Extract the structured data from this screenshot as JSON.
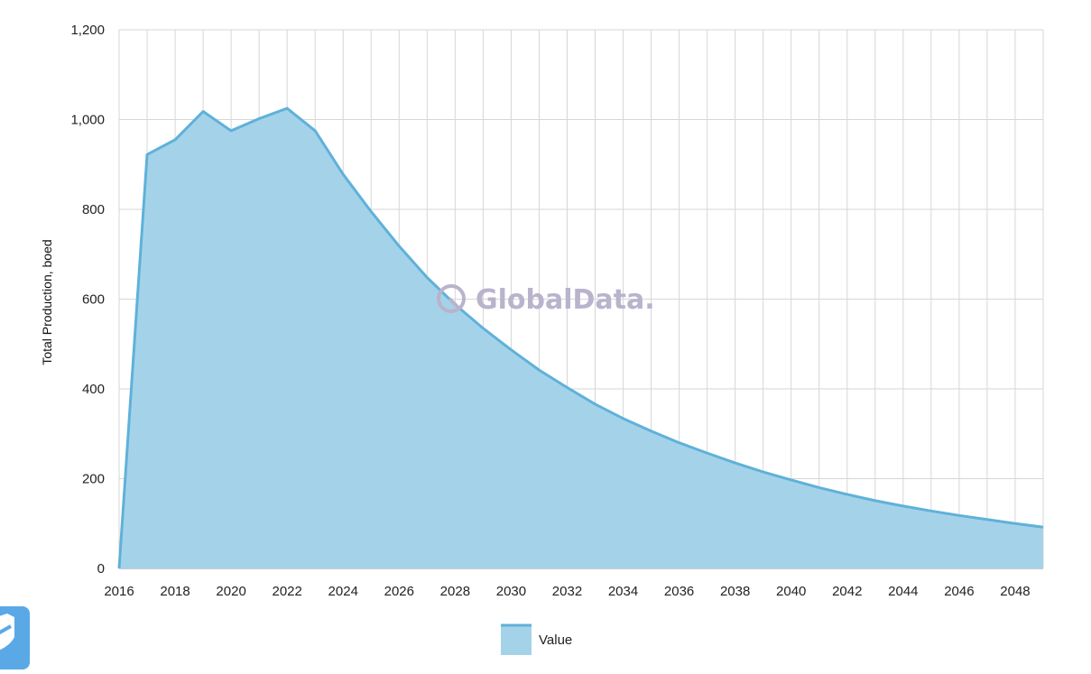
{
  "colors": {
    "area_fill": "#a4d3e9",
    "area_stroke": "#5fb1d9",
    "grid": "#d6d6d6",
    "watermark": "#b9b3cc",
    "widget": "#5aa9e6"
  },
  "watermark": {
    "text": "GlobalData."
  },
  "widget": {
    "icon": "shield-icon"
  },
  "chart_data": {
    "type": "area",
    "ylabel": "Total Production, boed",
    "xlabel": "",
    "xlim": [
      2016,
      2049
    ],
    "ylim": [
      0,
      1200
    ],
    "y_ticks": [
      0,
      200,
      400,
      600,
      800,
      1000,
      1200
    ],
    "y_tick_labels": [
      "0",
      "200",
      "400",
      "600",
      "800",
      "1,000",
      "1,200"
    ],
    "x_ticks": [
      2016,
      2018,
      2020,
      2022,
      2024,
      2026,
      2028,
      2030,
      2032,
      2034,
      2036,
      2038,
      2040,
      2042,
      2044,
      2046,
      2048
    ],
    "x_tick_labels": [
      "2016",
      "2018",
      "2020",
      "2022",
      "2024",
      "2026",
      "2028",
      "2030",
      "2032",
      "2034",
      "2036",
      "2038",
      "2040",
      "2042",
      "2044",
      "2046",
      "2048"
    ],
    "grid": true,
    "legend": {
      "position": "bottom-center"
    },
    "series": [
      {
        "name": "Value",
        "x": [
          2016,
          2017,
          2018,
          2019,
          2020,
          2021,
          2022,
          2023,
          2024,
          2025,
          2026,
          2027,
          2028,
          2029,
          2030,
          2031,
          2032,
          2033,
          2034,
          2035,
          2036,
          2037,
          2038,
          2039,
          2040,
          2041,
          2042,
          2043,
          2044,
          2045,
          2046,
          2047,
          2048,
          2049
        ],
        "values": [
          0,
          922,
          955,
          1018,
          975,
          1002,
          1025,
          975,
          878,
          795,
          718,
          648,
          588,
          535,
          487,
          442,
          403,
          366,
          334,
          306,
          280,
          257,
          235,
          215,
          197,
          180,
          165,
          151,
          139,
          128,
          118,
          109,
          100,
          92
        ]
      }
    ]
  }
}
